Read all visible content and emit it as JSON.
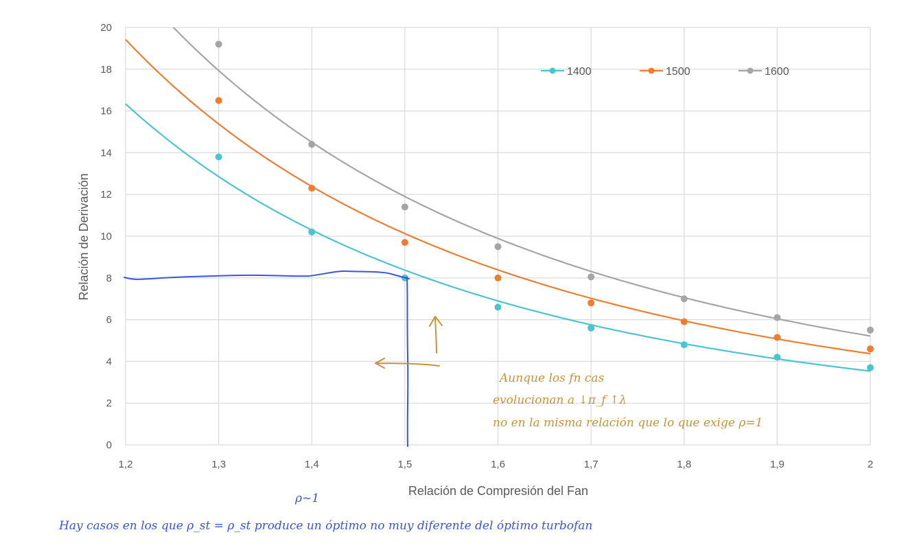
{
  "chart_data": {
    "type": "line",
    "title": "",
    "xlabel": "Relación de Compresión del Fan",
    "ylabel": "Relación de Derivación",
    "xlim": [
      1.2,
      2.0
    ],
    "ylim": [
      0,
      20
    ],
    "x_ticks": [
      "1,2",
      "1,3",
      "1,4",
      "1,5",
      "1,6",
      "1,7",
      "1,8",
      "1,9",
      "2"
    ],
    "y_ticks": [
      "0",
      "2",
      "4",
      "6",
      "8",
      "10",
      "12",
      "14",
      "16",
      "18",
      "20"
    ],
    "grid": true,
    "legend_position": "top-right",
    "x": [
      1.3,
      1.4,
      1.5,
      1.6,
      1.7,
      1.8,
      1.9,
      2.0
    ],
    "series": [
      {
        "name": "1400",
        "color": "#4bc4cf",
        "values": [
          13.8,
          10.2,
          8.0,
          6.6,
          5.6,
          4.8,
          4.2,
          3.7
        ]
      },
      {
        "name": "1500",
        "color": "#ed7d31",
        "values": [
          16.5,
          12.3,
          9.7,
          8.0,
          6.8,
          5.9,
          5.15,
          4.6
        ]
      },
      {
        "name": "1600",
        "color": "#a5a5a5",
        "values": [
          19.2,
          14.4,
          11.4,
          9.5,
          8.05,
          7.0,
          6.1,
          5.5
        ]
      }
    ],
    "annotations": {
      "handwritten_orange": [
        "Aunque los fn cas",
        "evolucionan a ↓π_f ↑λ",
        "no en la misma relación que lo que exige ρ=1"
      ],
      "handwritten_blue": [
        "ρ~1",
        "Hay casos en los que ρ_st = ρ_st produce un óptimo no muy diferente del óptimo turbofan"
      ]
    }
  }
}
